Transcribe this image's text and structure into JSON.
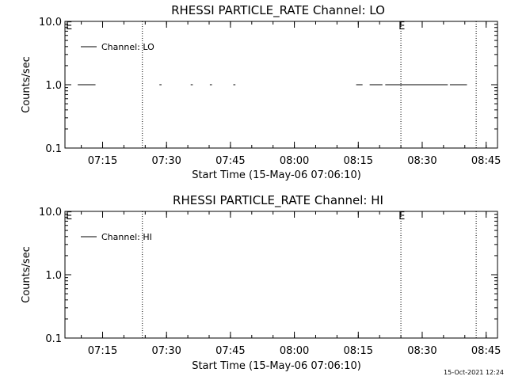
{
  "chart_data": [
    {
      "type": "line",
      "title": "RHESSI PARTICLE_RATE Channel: LO",
      "xlabel": "Start Time (15-May-06 07:06:10)",
      "ylabel": "Counts/sec",
      "yscale": "log",
      "ylim": [
        0.1,
        10.0
      ],
      "xlim": [
        "07:06:10",
        "08:47:40"
      ],
      "y_ticks": [
        "0.1",
        "1.0",
        "10.0"
      ],
      "x_ticks": [
        "07:15",
        "07:30",
        "07:45",
        "08:00",
        "08:15",
        "08:30",
        "08:45"
      ],
      "legend": {
        "label": "Channel: LO",
        "position": "top-left"
      },
      "markers": [
        {
          "time": "07:24:20",
          "label": ""
        },
        {
          "time": "08:25:00",
          "label": "E"
        },
        {
          "time": "08:42:40",
          "label": ""
        }
      ],
      "corner_label": "E",
      "series": [
        {
          "name": "Channel: LO",
          "segments": [
            {
              "start": "07:09:10",
              "end": "07:13:20",
              "value": 1.0
            },
            {
              "start": "07:28:20",
              "end": "07:28:50",
              "value": 1.0
            },
            {
              "start": "07:35:40",
              "end": "07:36:10",
              "value": 1.0
            },
            {
              "start": "07:40:10",
              "end": "07:40:40",
              "value": 1.0
            },
            {
              "start": "07:45:40",
              "end": "07:46:10",
              "value": 1.0
            },
            {
              "start": "08:14:30",
              "end": "08:16:00",
              "value": 1.0
            },
            {
              "start": "08:17:40",
              "end": "08:20:40",
              "value": 1.0
            },
            {
              "start": "08:21:20",
              "end": "08:36:00",
              "value": 1.0
            },
            {
              "start": "08:36:30",
              "end": "08:40:30",
              "value": 1.0
            }
          ]
        }
      ]
    },
    {
      "type": "line",
      "title": "RHESSI PARTICLE_RATE Channel: HI",
      "xlabel": "Start Time (15-May-06 07:06:10)",
      "ylabel": "Counts/sec",
      "yscale": "log",
      "ylim": [
        0.1,
        10.0
      ],
      "xlim": [
        "07:06:10",
        "08:47:40"
      ],
      "y_ticks": [
        "0.1",
        "1.0",
        "10.0"
      ],
      "x_ticks": [
        "07:15",
        "07:30",
        "07:45",
        "08:00",
        "08:15",
        "08:30",
        "08:45"
      ],
      "legend": {
        "label": "Channel: HI",
        "position": "top-left"
      },
      "markers": [
        {
          "time": "07:24:20",
          "label": ""
        },
        {
          "time": "08:25:00",
          "label": "E"
        },
        {
          "time": "08:42:40",
          "label": ""
        }
      ],
      "corner_label": "E",
      "series": [
        {
          "name": "Channel: HI",
          "segments": []
        }
      ]
    }
  ],
  "footer": {
    "timestamp": "15-Oct-2021 12:24"
  }
}
